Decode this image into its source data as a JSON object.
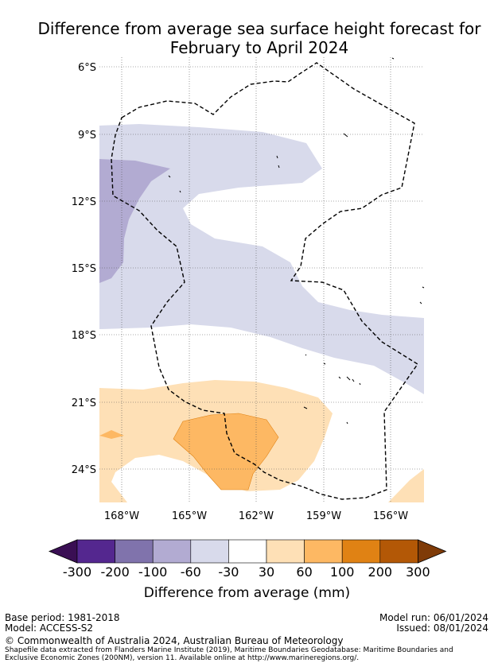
{
  "title": {
    "line1": "Difference from average sea surface height forecast for",
    "line2": "February to April 2024"
  },
  "map": {
    "lat_labels": [
      "6°S",
      "9°S",
      "12°S",
      "15°S",
      "18°S",
      "21°S",
      "24°S"
    ],
    "lon_labels": [
      "168°W",
      "165°W",
      "162°W",
      "159°W",
      "156°W"
    ],
    "line_style": "dashed-boundary"
  },
  "colorbar": {
    "title": "Difference from average (mm)",
    "tick_labels": [
      "-300",
      "-200",
      "-100",
      "-60",
      "-30",
      "30",
      "60",
      "100",
      "200",
      "300"
    ],
    "colors": {
      "under": "#3a0f54",
      "bins": [
        "#54278f",
        "#8073ac",
        "#b2abd2",
        "#d8daeb",
        "#ffffff",
        "#fee0b6",
        "#fdb863",
        "#e08214",
        "#b35806"
      ],
      "over": "#7f3b08"
    }
  },
  "footer": {
    "base_period": "Base period: 1981-2018",
    "model": "Model: ACCESS-S2",
    "model_run": "Model run: 06/01/2024",
    "issued": "Issued: 08/01/2024",
    "copyright": "© Commonwealth of Australia 2024, Australian Bureau of Meteorology",
    "shapefile_line1": "Shapefile data extracted from Flanders Marine Institute (2019), Maritime Boundaries Geodatabase: Maritime Boundaries and",
    "shapefile_line2": "Exclusive Economic Zones (200NM), version 11. Available online at http://www.marineregions.org/."
  }
}
